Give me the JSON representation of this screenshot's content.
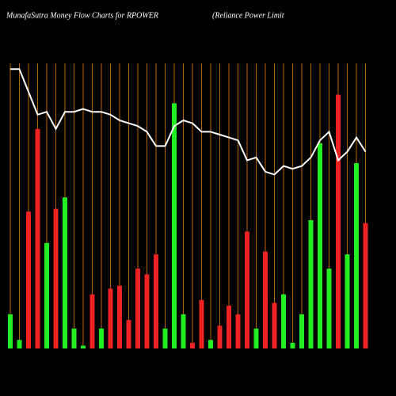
{
  "chart_data": {
    "type": "bar",
    "title": "MunafaSutra  Money Flow  Charts for RPOWER",
    "subtitle": "(Reliance   Power Limit",
    "ylim": [
      0,
      100
    ],
    "grid": true,
    "grid_color": "#b8650a",
    "bars": {
      "values": [
        12,
        3,
        48,
        77,
        37,
        49,
        53,
        7,
        1,
        19,
        7,
        21,
        22,
        10,
        28,
        26,
        33,
        7,
        86,
        12,
        2,
        17,
        3,
        8,
        15,
        12,
        41,
        7,
        34,
        16,
        19,
        2,
        12,
        45,
        72,
        28,
        89,
        33,
        65,
        44
      ],
      "colors": [
        "#22ee22",
        "#22ee22",
        "#ee2222",
        "#ee2222",
        "#22ee22",
        "#ee2222",
        "#22ee22",
        "#22ee22",
        "#22ee22",
        "#ee2222",
        "#22ee22",
        "#ee2222",
        "#ee2222",
        "#ee2222",
        "#ee2222",
        "#ee2222",
        "#ee2222",
        "#22ee22",
        "#22ee22",
        "#22ee22",
        "#ee2222",
        "#ee2222",
        "#22ee22",
        "#ee2222",
        "#ee2222",
        "#ee2222",
        "#ee2222",
        "#22ee22",
        "#ee2222",
        "#ee2222",
        "#22ee22",
        "#22ee22",
        "#22ee22",
        "#22ee22",
        "#22ee22",
        "#22ee22",
        "#ee2222",
        "#22ee22",
        "#22ee22",
        "#ee2222"
      ]
    },
    "line": {
      "color": "#ffffff",
      "values": [
        98,
        98,
        90,
        82,
        83,
        77,
        83,
        83,
        84,
        83,
        83,
        82,
        80,
        79,
        78,
        76,
        71,
        71,
        78,
        80,
        79,
        76,
        76,
        75,
        74,
        73,
        66,
        67,
        62,
        61,
        64,
        63,
        64,
        67,
        73,
        76,
        66,
        69,
        74,
        69
      ]
    }
  }
}
